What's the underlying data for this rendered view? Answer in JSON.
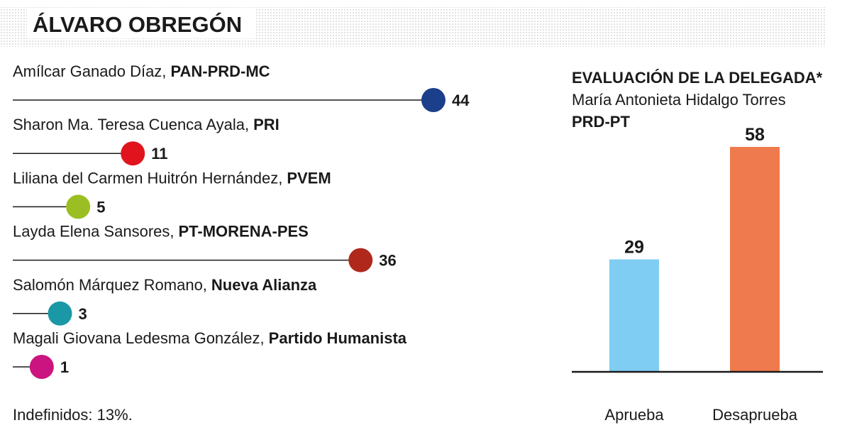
{
  "header": {
    "title": "ÁLVARO OBREGÓN"
  },
  "chart_data": [
    {
      "type": "lollipop",
      "categories": [
        "Amílcar Ganado Díaz,",
        "Sharon Ma. Teresa Cuenca Ayala,",
        "Liliana del Carmen Huitrón Hernández,",
        "Layda Elena Sansores,",
        "Salomón Márquez Romano,",
        "Magali Giovana Ledesma González,"
      ],
      "parties": [
        "PAN-PRD-MC",
        "PRI",
        "PVEM",
        "PT-MORENA-PES",
        "Nueva Alianza",
        "Partido Humanista"
      ],
      "values": [
        44,
        11,
        5,
        36,
        3,
        1
      ],
      "colors": [
        "#1b3f8b",
        "#e1131d",
        "#9bbf22",
        "#b0281c",
        "#1b98a6",
        "#cb1480"
      ]
    },
    {
      "type": "bar",
      "title": "EVALUACIÓN DE LA DELEGADA*",
      "subtitle": "María Antonieta Hidalgo Torres",
      "party": "PRD-PT",
      "categories": [
        "Aprueba",
        "Desaprueba"
      ],
      "values": [
        29,
        58
      ],
      "colors": [
        "#80cdf3",
        "#ee7a4e"
      ]
    }
  ],
  "footer": {
    "note": "Indefinidos: 13%."
  }
}
